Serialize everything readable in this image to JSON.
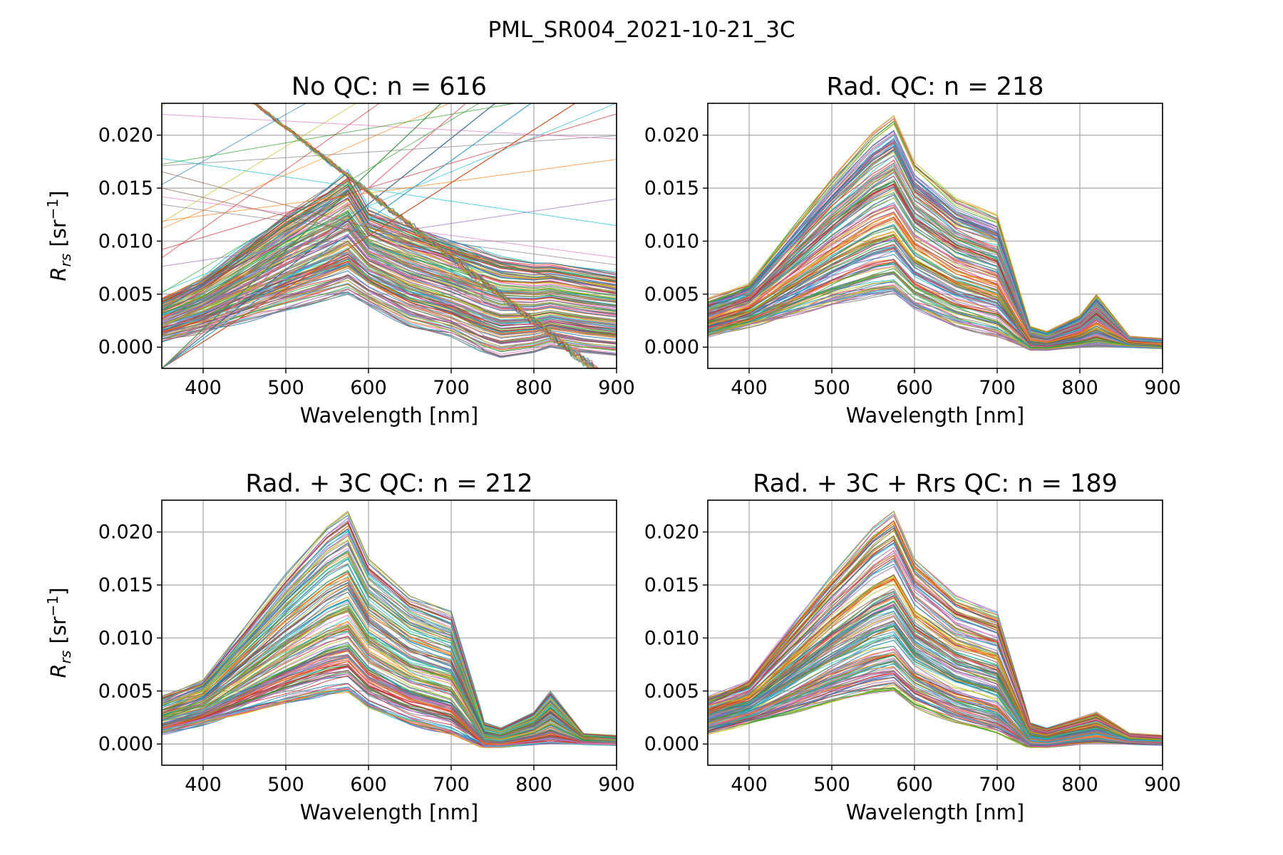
{
  "figure": {
    "title": "PML_SR004_2021-10-21_3C"
  },
  "colors": {
    "palette": [
      "#1f77b4",
      "#ff7f0e",
      "#2ca02c",
      "#d62728",
      "#9467bd",
      "#8c564b",
      "#e377c2",
      "#7f7f7f",
      "#bcbd22",
      "#17becf"
    ],
    "grid": "#b0b0b0",
    "axes": "#000000"
  },
  "chart_data": [
    {
      "type": "line",
      "title": "No QC:  n = 616",
      "n": 616,
      "xlabel": "Wavelength [nm]",
      "ylabel": "R_rs [sr^-1]",
      "xlim": [
        350,
        900
      ],
      "ylim": [
        -0.002,
        0.023
      ],
      "xticks": [
        400,
        500,
        600,
        700,
        800,
        900
      ],
      "yticks": [
        0.0,
        0.005,
        0.01,
        0.015,
        0.02
      ],
      "xtick_labels": [
        "400",
        "500",
        "600",
        "700",
        "800",
        "900"
      ],
      "ytick_labels": [
        "0.000",
        "0.005",
        "0.010",
        "0.015",
        "0.020"
      ],
      "grid": true,
      "series_count": 616,
      "envelope": {
        "x": [
          350,
          400,
          450,
          500,
          550,
          575,
          600,
          650,
          700,
          740,
          760,
          800,
          820,
          860,
          900
        ],
        "typical_max": [
          0.0045,
          0.0065,
          0.0095,
          0.0125,
          0.015,
          0.0165,
          0.013,
          0.0115,
          0.01,
          0.009,
          0.0085,
          0.008,
          0.008,
          0.0075,
          0.007
        ],
        "median": [
          0.002,
          0.003,
          0.005,
          0.007,
          0.0095,
          0.011,
          0.008,
          0.0065,
          0.005,
          0.001,
          0.0005,
          0.001,
          0.0015,
          0.001,
          0.0008
        ],
        "typical_min": [
          0.0005,
          0.0015,
          0.0025,
          0.0035,
          0.0045,
          0.005,
          0.004,
          0.002,
          0.001,
          -0.0005,
          -0.001,
          -0.0005,
          0.0,
          -0.0005,
          -0.0008
        ]
      }
    },
    {
      "type": "line",
      "title": "Rad. QC:  n = 218",
      "n": 218,
      "xlabel": "Wavelength [nm]",
      "ylabel": "",
      "xlim": [
        350,
        900
      ],
      "ylim": [
        -0.002,
        0.023
      ],
      "xticks": [
        400,
        500,
        600,
        700,
        800,
        900
      ],
      "yticks": [
        0.0,
        0.005,
        0.01,
        0.015,
        0.02
      ],
      "xtick_labels": [
        "400",
        "500",
        "600",
        "700",
        "800",
        "900"
      ],
      "ytick_labels": [
        "0.000",
        "0.005",
        "0.010",
        "0.015",
        "0.020"
      ],
      "grid": true,
      "series_count": 218,
      "envelope": {
        "x": [
          350,
          400,
          450,
          500,
          550,
          575,
          600,
          650,
          700,
          740,
          760,
          800,
          820,
          860,
          900
        ],
        "typical_max": [
          0.0045,
          0.006,
          0.011,
          0.016,
          0.0205,
          0.022,
          0.0175,
          0.014,
          0.0125,
          0.002,
          0.0015,
          0.003,
          0.005,
          0.001,
          0.0008
        ],
        "median": [
          0.002,
          0.003,
          0.005,
          0.0075,
          0.01,
          0.011,
          0.0075,
          0.006,
          0.0045,
          0.0003,
          0.0003,
          0.0008,
          0.0012,
          0.0005,
          0.0004
        ],
        "typical_min": [
          0.001,
          0.002,
          0.003,
          0.004,
          0.0048,
          0.005,
          0.0035,
          0.002,
          0.001,
          -0.0003,
          -0.0003,
          0.0,
          0.0001,
          0.0,
          -0.0001
        ]
      }
    },
    {
      "type": "line",
      "title": "Rad. + 3C QC:  n = 212",
      "n": 212,
      "xlabel": "Wavelength [nm]",
      "ylabel": "R_rs [sr^-1]",
      "xlim": [
        350,
        900
      ],
      "ylim": [
        -0.002,
        0.023
      ],
      "xticks": [
        400,
        500,
        600,
        700,
        800,
        900
      ],
      "yticks": [
        0.0,
        0.005,
        0.01,
        0.015,
        0.02
      ],
      "xtick_labels": [
        "400",
        "500",
        "600",
        "700",
        "800",
        "900"
      ],
      "ytick_labels": [
        "0.000",
        "0.005",
        "0.010",
        "0.015",
        "0.020"
      ],
      "grid": true,
      "series_count": 212,
      "envelope": {
        "x": [
          350,
          400,
          450,
          500,
          550,
          575,
          600,
          650,
          700,
          740,
          760,
          800,
          820,
          860,
          900
        ],
        "typical_max": [
          0.0045,
          0.006,
          0.011,
          0.016,
          0.0205,
          0.022,
          0.0175,
          0.014,
          0.0125,
          0.002,
          0.0015,
          0.003,
          0.005,
          0.001,
          0.0008
        ],
        "median": [
          0.002,
          0.003,
          0.005,
          0.0075,
          0.01,
          0.011,
          0.0075,
          0.006,
          0.0045,
          0.0003,
          0.0003,
          0.0008,
          0.0012,
          0.0005,
          0.0004
        ],
        "typical_min": [
          0.001,
          0.002,
          0.003,
          0.004,
          0.0048,
          0.005,
          0.0035,
          0.002,
          0.001,
          -0.0003,
          -0.0003,
          0.0,
          0.0001,
          0.0,
          -0.0001
        ]
      }
    },
    {
      "type": "line",
      "title": "Rad. + 3C + Rrs QC:  n = 189",
      "n": 189,
      "xlabel": "Wavelength [nm]",
      "ylabel": "",
      "xlim": [
        350,
        900
      ],
      "ylim": [
        -0.002,
        0.023
      ],
      "xticks": [
        400,
        500,
        600,
        700,
        800,
        900
      ],
      "yticks": [
        0.0,
        0.005,
        0.01,
        0.015,
        0.02
      ],
      "xtick_labels": [
        "400",
        "500",
        "600",
        "700",
        "800",
        "900"
      ],
      "ytick_labels": [
        "0.000",
        "0.005",
        "0.010",
        "0.015",
        "0.020"
      ],
      "grid": true,
      "series_count": 189,
      "envelope": {
        "x": [
          350,
          400,
          450,
          500,
          550,
          575,
          600,
          650,
          700,
          740,
          760,
          800,
          820,
          860,
          900
        ],
        "typical_max": [
          0.0045,
          0.006,
          0.011,
          0.016,
          0.0205,
          0.022,
          0.0175,
          0.014,
          0.0125,
          0.002,
          0.0015,
          0.0025,
          0.003,
          0.001,
          0.0008
        ],
        "median": [
          0.002,
          0.003,
          0.005,
          0.0075,
          0.01,
          0.011,
          0.0075,
          0.006,
          0.0045,
          0.0003,
          0.0003,
          0.0008,
          0.0012,
          0.0005,
          0.0004
        ],
        "typical_min": [
          0.001,
          0.002,
          0.003,
          0.004,
          0.0048,
          0.005,
          0.0035,
          0.002,
          0.001,
          -0.0003,
          -0.0003,
          0.0,
          0.0001,
          0.0,
          -0.0001
        ]
      }
    }
  ]
}
